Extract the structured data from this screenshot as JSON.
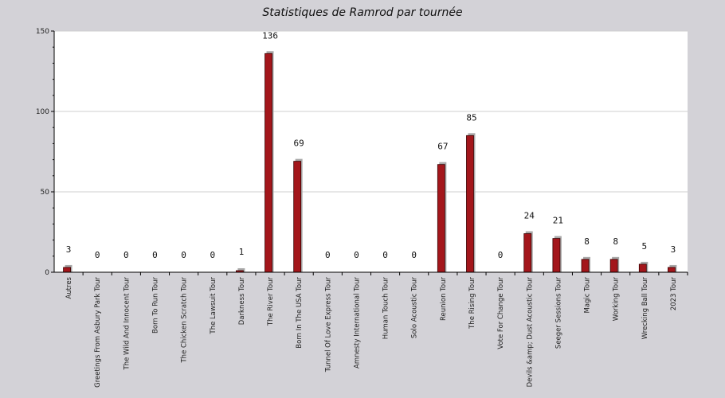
{
  "chart_data": {
    "type": "bar",
    "title": "Statistiques de Ramrod par tournée",
    "xlabel": "",
    "ylabel": "",
    "ylim": [
      0,
      150
    ],
    "yticks": [
      0,
      50,
      100,
      150
    ],
    "grid": true,
    "colors": {
      "bar": "#a3161b",
      "shadow": "#a9a9a9",
      "plot_bg": "#ffffff",
      "page_bg": "#d3d2d7",
      "grid": "#cfcfcf"
    },
    "categories": [
      "Autres",
      "Greetings From Asbury Park Tour",
      "The Wild And Innocent Tour",
      "Born To Run Tour",
      "The Chicken Scratch Tour",
      "The Lawsuit Tour",
      "Darkness Tour",
      "The River Tour",
      "Born In The USA Tour",
      "Tunnel Of Love Express Tour",
      "Amnesty International Tour",
      "Human Touch Tour",
      "Solo Acoustic Tour",
      "Reunion Tour",
      "The Rising Tour",
      "Vote For Change Tour",
      "Devils &amp; Dust Acoustic Tour",
      "Seeger Sessions Tour",
      "Magic Tour",
      "Working Tour",
      "Wrecking Ball Tour",
      "2023 Tour"
    ],
    "values": [
      3,
      0,
      0,
      0,
      0,
      0,
      1,
      136,
      69,
      0,
      0,
      0,
      0,
      67,
      85,
      0,
      24,
      21,
      8,
      8,
      5,
      3
    ]
  }
}
